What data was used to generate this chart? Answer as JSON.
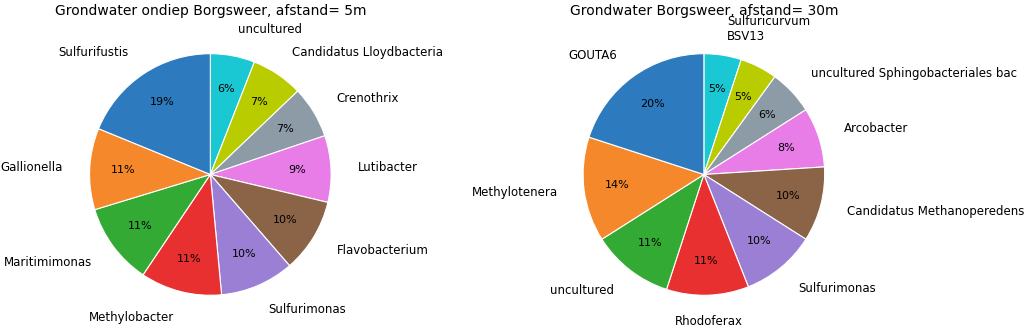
{
  "chart1": {
    "title": "Grondwater ondiep Borgsweer, afstand= 5m",
    "labels": [
      "uncultured",
      "Candidatus Lloydbacteria",
      "Crenothrix",
      "Lutibacter",
      "Flavobacterium",
      "Sulfurimonas",
      "Methylobacter",
      "Maritimimonas",
      "Gallionella",
      "Sulfurifustis"
    ],
    "values": [
      6,
      7,
      7,
      9,
      10,
      10,
      11,
      11,
      11,
      19
    ],
    "colors": [
      "#1ac8d4",
      "#b8cc00",
      "#8c9ba6",
      "#e87de8",
      "#8b6347",
      "#9b7fd4",
      "#e83030",
      "#33aa33",
      "#f5882a",
      "#2d7abf"
    ],
    "startangle": 90
  },
  "chart2": {
    "title": "Grondwater Borgsweer, afstand= 30m",
    "labels": [
      "Sulfuricurvum\nBSV13",
      "BSV13",
      "uncultured Sphingobacteriales bac",
      "Arcobacter",
      "Candidatus Methanoperedens",
      "Sulfurimonas",
      "Rhodoferax",
      "uncultured",
      "Methylotenera",
      "GOUTA6"
    ],
    "values": [
      5,
      5,
      6,
      8,
      10,
      10,
      11,
      11,
      14,
      20
    ],
    "colors": [
      "#1ac8d4",
      "#b8cc00",
      "#8c9ba6",
      "#e87de8",
      "#8b6347",
      "#9b7fd4",
      "#e83030",
      "#33aa33",
      "#f5882a",
      "#2d7abf"
    ],
    "startangle": 90
  },
  "figsize": [
    10.24,
    3.33
  ],
  "dpi": 100,
  "label_fontsize": 8.5,
  "pct_fontsize": 8,
  "title_fontsize": 10,
  "labeldistance": 1.22,
  "pctdistance": 0.72
}
